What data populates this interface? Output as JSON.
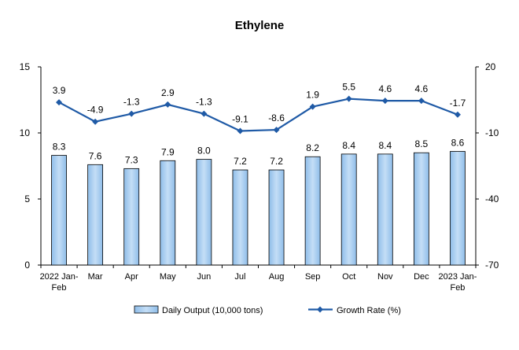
{
  "chart_data": {
    "type": "bar",
    "title": "Ethylene",
    "categories": [
      "2022 Jan-Feb",
      "Mar",
      "Apr",
      "May",
      "Jun",
      "Jul",
      "Aug",
      "Sep",
      "Oct",
      "Nov",
      "Dec",
      "2023 Jan-Feb"
    ],
    "category_lines": [
      [
        "2022 Jan-",
        "Feb"
      ],
      [
        "Mar"
      ],
      [
        "Apr"
      ],
      [
        "May"
      ],
      [
        "Jun"
      ],
      [
        "Jul"
      ],
      [
        "Aug"
      ],
      [
        "Sep"
      ],
      [
        "Oct"
      ],
      [
        "Nov"
      ],
      [
        "Dec"
      ],
      [
        "2023 Jan-",
        "Feb"
      ]
    ],
    "series": [
      {
        "name": "Daily Output (10,000 tons)",
        "type": "bar",
        "axis": "left",
        "values": [
          8.3,
          7.6,
          7.3,
          7.9,
          8.0,
          7.2,
          7.2,
          8.2,
          8.4,
          8.4,
          8.5,
          8.6
        ],
        "labels": [
          "8.3",
          "7.6",
          "7.3",
          "7.9",
          "8.0",
          "7.2",
          "7.2",
          "8.2",
          "8.4",
          "8.4",
          "8.5",
          "8.6"
        ]
      },
      {
        "name": "Growth Rate (%)",
        "type": "line",
        "axis": "right",
        "values": [
          3.9,
          -4.9,
          -1.3,
          2.9,
          -1.3,
          -9.1,
          -8.6,
          1.9,
          5.5,
          4.6,
          4.6,
          -1.7
        ],
        "labels": [
          "3.9",
          "-4.9",
          "-1.3",
          "2.9",
          "-1.3",
          "-9.1",
          "-8.6",
          "1.9",
          "5.5",
          "4.6",
          "4.6",
          "-1.7"
        ]
      }
    ],
    "y_left": {
      "min": 0,
      "max": 15,
      "ticks": [
        "0",
        "5",
        "10",
        "15"
      ]
    },
    "y_right": {
      "min": -70,
      "max": 20,
      "ticks": [
        "-70",
        "-40",
        "-10",
        "20"
      ]
    },
    "grid": false,
    "legend_position": "bottom",
    "colors": {
      "bar_fill": "#a9cdf2",
      "bar_stroke": "#000000",
      "line": "#1f5aa6"
    }
  }
}
